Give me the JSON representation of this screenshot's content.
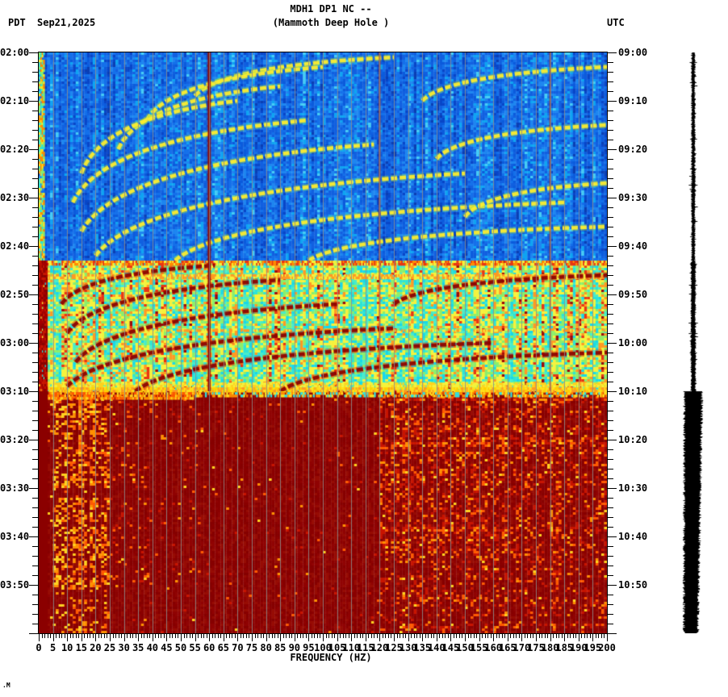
{
  "header": {
    "tz_left": "PDT",
    "date": "Sep21,2025",
    "title_line1": "MDH1 DP1 NC --",
    "title_line2": "(Mammoth Deep Hole )",
    "tz_right": "UTC"
  },
  "watermark": ".M",
  "chart_data": {
    "type": "heatmap",
    "subtype": "seismic-spectrogram",
    "station": "MDH1 DP1 NC",
    "site": "Mammoth Deep Hole",
    "date": "Sep21,2025",
    "xlabel": "FREQUENCY (HZ)",
    "x_range_hz": [
      0,
      200
    ],
    "x_major_tick_hz": 5,
    "x_minor_tick_hz": 1,
    "x_tick_labels": [
      "0",
      "5",
      "10",
      "15",
      "20",
      "25",
      "30",
      "35",
      "40",
      "45",
      "50",
      "55",
      "60",
      "65",
      "70",
      "75",
      "80",
      "85",
      "90",
      "95",
      "100",
      "105",
      "110",
      "115",
      "120",
      "125",
      "130",
      "135",
      "140",
      "145",
      "150",
      "155",
      "160",
      "165",
      "170",
      "175",
      "180",
      "185",
      "190",
      "195",
      "200"
    ],
    "time_axis_left_tz": "PDT",
    "time_axis_right_tz": "UTC",
    "time_start_pdt": "02:00",
    "time_end_pdt": "04:00",
    "duration_min": 120,
    "y_major_tick_min": 10,
    "y_minor_tick_min": 2,
    "left_time_labels": [
      "02:00",
      "02:10",
      "02:20",
      "02:30",
      "02:40",
      "02:50",
      "03:00",
      "03:10",
      "03:20",
      "03:30",
      "03:40",
      "03:50"
    ],
    "right_time_labels": [
      "09:00",
      "09:10",
      "09:20",
      "09:30",
      "09:40",
      "09:50",
      "10:00",
      "10:10",
      "10:20",
      "10:30",
      "10:40",
      "10:50"
    ],
    "grid": {
      "freq_gridline_every_hz": 5,
      "color": "#8c8c8c"
    },
    "powerline_noise_lines": [
      {
        "hz": 60,
        "color": "#8b0000",
        "halo": "#cc4400",
        "width": 3,
        "alpha": 1.0,
        "t0": 0,
        "t1": 70
      },
      {
        "hz": 120,
        "color": "#cc3300",
        "halo": "",
        "width": 2,
        "alpha": 0.8,
        "t0": 0,
        "t1": 70
      },
      {
        "hz": 180,
        "color": "#c83800",
        "halo": "",
        "width": 2,
        "alpha": 0.6,
        "t0": 0,
        "t1": 70
      }
    ],
    "regions": [
      {
        "name": "quiet-blue-background",
        "t0": 0,
        "t1": 43
      },
      {
        "name": "active-cyan-with-red-arcs",
        "t0": 43,
        "t1": 70
      },
      {
        "name": "saturated-dark-red",
        "t0": 70,
        "t1": 120
      }
    ],
    "palettes": {
      "quiet": [
        "#0a3fb4",
        "#0846c8",
        "#0b5bdc",
        "#1160e0",
        "#1470ea",
        "#1e86f0",
        "#0fa4f2",
        "#45ccf5"
      ],
      "active": {
        "cyan": [
          "#18d8e8",
          "#2ee4d4",
          "#49ecc8"
        ],
        "green": "#8cee6a",
        "yellow": "#f5f23c",
        "orange": "#ff9a22",
        "red": "#e83513",
        "darkred": "#9c0a0a"
      },
      "saturated_base": [
        "#8b0000",
        "#900303",
        "#860000",
        "#970c04"
      ],
      "saturated_speckle": [
        "#c81400",
        "#ff5a00",
        "#ff9000",
        "#ffd21e"
      ]
    },
    "arcs_quiet_gliding_harmonics": [
      [
        55,
        9,
        125,
        1
      ],
      [
        38,
        14,
        100,
        3
      ],
      [
        28,
        20,
        85,
        7
      ],
      [
        15,
        25,
        70,
        10
      ],
      [
        12,
        31,
        95,
        14
      ],
      [
        15,
        37,
        118,
        19
      ],
      [
        20,
        42,
        150,
        25
      ],
      [
        48,
        43,
        185,
        31
      ],
      [
        95,
        43,
        200,
        36
      ],
      [
        135,
        10,
        200,
        3
      ],
      [
        140,
        22,
        200,
        15
      ],
      [
        150,
        34,
        200,
        27
      ]
    ],
    "arcs_active_gliding_harmonics": [
      [
        8,
        52,
        62,
        44
      ],
      [
        10,
        58,
        85,
        47
      ],
      [
        13,
        64,
        105,
        52
      ],
      [
        10,
        69,
        125,
        57
      ],
      [
        34,
        70,
        160,
        60
      ],
      [
        85,
        70,
        200,
        62
      ],
      [
        125,
        52,
        200,
        46
      ]
    ],
    "arc_colors": {
      "quiet_core": "#ffee2e",
      "quiet_glow": "#96dc50",
      "active_core": "#8b0000",
      "active_glow": "#cc2200"
    },
    "stripes": [
      {
        "t0": 43.0,
        "t1": 43.6,
        "f0": 0,
        "f1": 200,
        "colors": [
          "#ff8c00",
          "#e83513",
          "#f5f23c"
        ],
        "density": 0.85
      },
      {
        "t0": 45.8,
        "t1": 46.5,
        "f0": 0,
        "f1": 200,
        "colors": [
          "#f5f23c",
          "#ff9a22"
        ],
        "density": 0.8
      },
      {
        "t0": 57.2,
        "t1": 57.7,
        "f0": 0,
        "f1": 200,
        "colors": [
          "#ff9a22",
          "#f5f23c"
        ],
        "density": 0.6
      },
      {
        "t0": 68.2,
        "t1": 69.0,
        "f0": 0,
        "f1": 200,
        "colors": [
          "#f5f23c",
          "#ffd21e"
        ],
        "density": 0.75
      },
      {
        "t0": 69.2,
        "t1": 70.2,
        "f0": 0,
        "f1": 200,
        "colors": [
          "#ffe21e",
          "#ffd200",
          "#ff9a22"
        ],
        "density": 0.9
      },
      {
        "t0": 70.2,
        "t1": 71.2,
        "f0": 55,
        "f1": 200,
        "colors": [
          "#2ee4e4",
          "#ffe21e",
          "#ff8c00"
        ],
        "density": 0.65
      },
      {
        "t0": 70.2,
        "t1": 71.5,
        "f0": 3,
        "f1": 55,
        "colors": [
          "#ffd21e",
          "#ff9000",
          "#ff5a00"
        ],
        "density": 0.8
      }
    ],
    "edge_bands": [
      {
        "t0": 0,
        "t1": 43,
        "f0": 0,
        "f1": 1.6,
        "colors": [
          "#ffe21e",
          "#8cee6a",
          "#ff8c00",
          "#2ee4d4"
        ],
        "density": 0.85
      },
      {
        "t0": 43,
        "t1": 70,
        "f0": 0,
        "f1": 2.6,
        "colors": [
          "#8b0000",
          "#a50000",
          "#c81400"
        ],
        "density": 0.95
      },
      {
        "t0": 70,
        "t1": 120,
        "f0": 0,
        "f1": 3.0,
        "colors": [
          "#8b0000"
        ],
        "density": 1.0
      }
    ],
    "saturated_streak_windows": [
      [
        71,
        90,
        1.0
      ],
      [
        92,
        111,
        1.0
      ],
      [
        113,
        120,
        0.55
      ]
    ],
    "waveform_panel": {
      "description": "clipped amplitude trace, small 09:00-10:10 then saturated 10:10-10:53",
      "color": "#000000",
      "loud_start_min": 70
    }
  },
  "layout_colors": {
    "text": "#000000",
    "plot_border": "#000000",
    "background": "#ffffff"
  }
}
